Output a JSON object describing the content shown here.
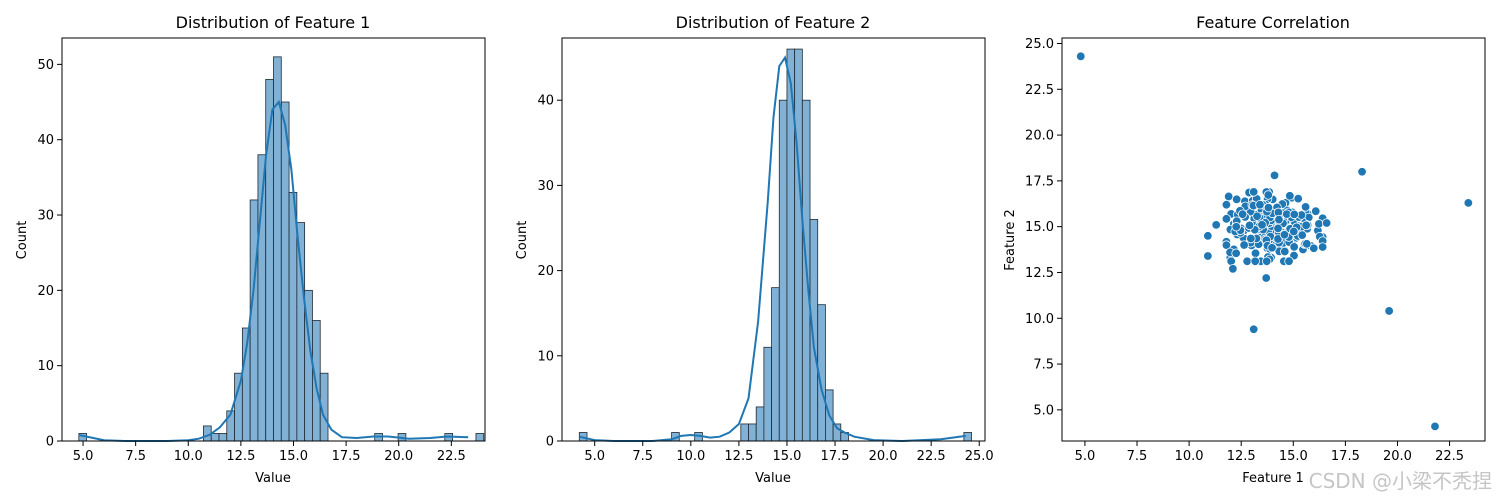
{
  "watermark": "CSDN @小梁不秃捏",
  "colors": {
    "bar_fill": "#82b1d6",
    "bar_edge": "#1f2a33",
    "line": "#1f77b4",
    "point": "#1f77b4"
  },
  "chart_data": [
    {
      "type": "bar",
      "title": "Distribution of Feature 1",
      "xlabel": "Value",
      "ylabel": "Count",
      "xlim": [
        4.0,
        24.1
      ],
      "ylim": [
        0,
        53.5
      ],
      "xticks": [
        5.0,
        7.5,
        10.0,
        12.5,
        15.0,
        17.5,
        20.0,
        22.5
      ],
      "xtick_labels": [
        "5.0",
        "7.5",
        "10.0",
        "12.5",
        "15.0",
        "17.5",
        "20.0",
        "22.5"
      ],
      "yticks": [
        0,
        10,
        20,
        30,
        40,
        50
      ],
      "ytick_labels": [
        "0",
        "10",
        "20",
        "30",
        "40",
        "50"
      ],
      "bin_start": 4.8,
      "bin_width": 0.37,
      "counts": [
        1,
        0,
        0,
        0,
        0,
        0,
        0,
        0,
        0,
        0,
        0,
        0,
        0,
        0,
        0,
        0,
        2,
        1,
        1,
        4,
        9,
        15,
        32,
        38,
        48,
        51,
        45,
        33,
        29,
        20,
        16,
        9,
        0,
        0,
        0,
        0,
        0,
        0,
        1,
        0,
        0,
        1,
        0,
        0,
        0,
        0,
        0,
        1,
        0,
        0,
        0,
        1
      ],
      "kde": {
        "x": [
          4.8,
          6,
          7,
          8,
          9,
          10,
          10.5,
          11,
          11.5,
          12,
          12.5,
          12.8,
          13.1,
          13.4,
          13.7,
          14,
          14.3,
          14.6,
          14.9,
          15.2,
          15.5,
          15.8,
          16.1,
          16.4,
          16.8,
          17.3,
          18,
          18.8,
          19.5,
          20.5,
          21.5,
          22.3,
          23.3
        ],
        "y": [
          0.8,
          0.1,
          0,
          0,
          0,
          0.1,
          0.3,
          0.8,
          1.8,
          3.5,
          8,
          13,
          20,
          29,
          38,
          44,
          45,
          42,
          36,
          27,
          19,
          12,
          7,
          3.5,
          1.5,
          0.5,
          0.4,
          0.6,
          0.6,
          0.3,
          0.4,
          0.6,
          0.5
        ]
      }
    },
    {
      "type": "bar",
      "title": "Distribution of Feature 2",
      "xlabel": "Value",
      "ylabel": "Count",
      "xlim": [
        3.3,
        25.3
      ],
      "ylim": [
        0,
        47.3
      ],
      "xticks": [
        5.0,
        7.5,
        10.0,
        12.5,
        15.0,
        17.5,
        20.0,
        22.5,
        25.0
      ],
      "xtick_labels": [
        "5.0",
        "7.5",
        "10.0",
        "12.5",
        "15.0",
        "17.5",
        "20.0",
        "22.5",
        "25.0"
      ],
      "yticks": [
        0,
        10,
        20,
        30,
        40
      ],
      "ytick_labels": [
        "0",
        "10",
        "20",
        "30",
        "40"
      ],
      "bin_start": 4.2,
      "bin_width": 0.4,
      "counts": [
        1,
        0,
        0,
        0,
        0,
        0,
        0,
        0,
        0,
        0,
        0,
        0,
        1,
        0,
        0,
        1,
        0,
        0,
        0,
        0,
        0,
        2,
        2,
        4,
        11,
        18,
        40,
        46,
        46,
        40,
        26,
        16,
        6,
        2,
        1,
        0,
        0,
        0,
        0,
        0,
        0,
        0,
        0,
        0,
        0,
        0,
        0,
        0,
        0,
        0,
        1
      ],
      "kde": {
        "x": [
          4.2,
          5,
          6,
          7,
          8,
          9,
          9.5,
          10,
          10.5,
          11,
          11.5,
          12,
          12.5,
          13,
          13.5,
          14,
          14.3,
          14.6,
          14.9,
          15.2,
          15.5,
          15.8,
          16.1,
          16.4,
          16.8,
          17.2,
          17.6,
          18,
          18.5,
          19.5,
          21,
          23,
          24.3
        ],
        "y": [
          0.5,
          0.1,
          0,
          0,
          0,
          0.2,
          0.6,
          0.7,
          0.6,
          0.4,
          0.5,
          1,
          2,
          5,
          14,
          28,
          38,
          44,
          45,
          42,
          35,
          26,
          18,
          11,
          6,
          3,
          1.5,
          1,
          0.5,
          0.1,
          0,
          0.2,
          0.6
        ]
      }
    },
    {
      "type": "scatter",
      "title": "Feature Correlation",
      "xlabel": "Feature 1",
      "ylabel": "Feature 2",
      "xlim": [
        3.9,
        24.2
      ],
      "ylim": [
        3.3,
        25.3
      ],
      "xticks": [
        5.0,
        7.5,
        10.0,
        12.5,
        15.0,
        17.5,
        20.0,
        22.5
      ],
      "xtick_labels": [
        "5.0",
        "7.5",
        "10.0",
        "12.5",
        "15.0",
        "17.5",
        "20.0",
        "22.5"
      ],
      "yticks": [
        5.0,
        7.5,
        10.0,
        12.5,
        15.0,
        17.5,
        20.0,
        22.5,
        25.0
      ],
      "ytick_labels": [
        "5.0",
        "7.5",
        "10.0",
        "12.5",
        "15.0",
        "17.5",
        "20.0",
        "22.5",
        "25.0"
      ],
      "outliers": [
        [
          4.8,
          24.3
        ],
        [
          18.3,
          18.0
        ],
        [
          23.4,
          16.3
        ],
        [
          19.6,
          10.4
        ],
        [
          21.8,
          4.1
        ],
        [
          13.1,
          9.4
        ],
        [
          10.9,
          14.5
        ],
        [
          10.9,
          13.4
        ],
        [
          11.3,
          15.1
        ],
        [
          13.7,
          12.2
        ],
        [
          14.1,
          17.8
        ],
        [
          16.6,
          15.2
        ],
        [
          13.1,
          16.9
        ],
        [
          12.1,
          12.7
        ]
      ],
      "cluster": {
        "n": 236,
        "center": [
          14.1,
          15.0
        ],
        "spread": [
          1.1,
          0.9
        ]
      }
    }
  ]
}
